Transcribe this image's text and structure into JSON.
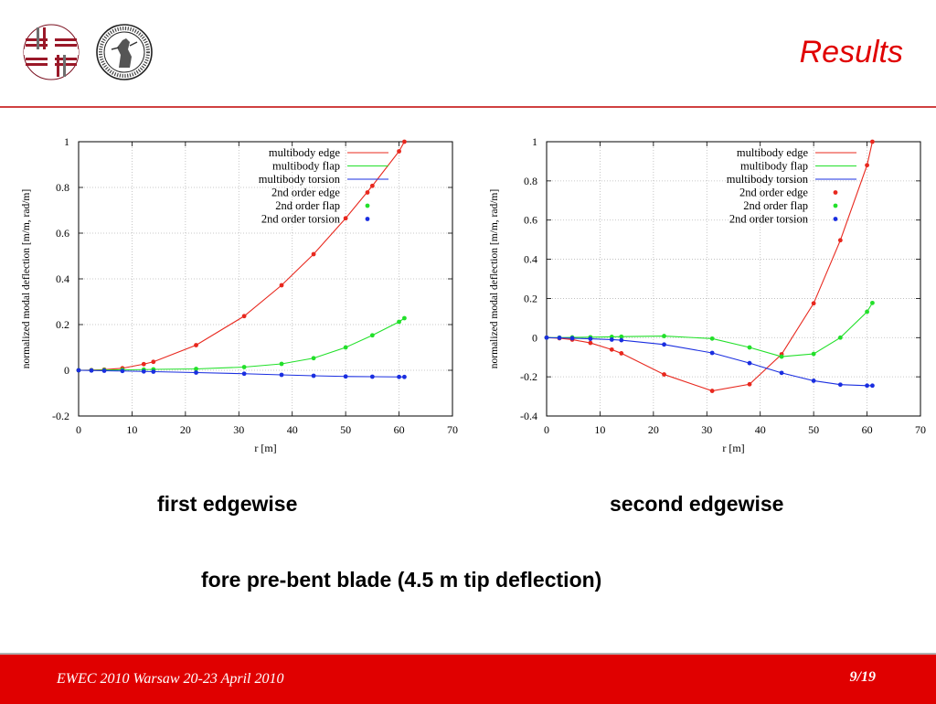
{
  "header": {
    "title": "Results"
  },
  "logos": {
    "left": "lab-logo",
    "right": "university-seal"
  },
  "captions": {
    "chart1": "first edgewise",
    "chart2": "second edgewise",
    "main": "fore pre-bent blade (4.5 m tip deflection)"
  },
  "footer": {
    "conference": "EWEC 2010 Warsaw 20-23 April 2010",
    "page": "9/19"
  },
  "colors": {
    "accent": "#e00000",
    "edge": "#e8281e",
    "flap": "#22e02a",
    "torsion": "#1a2ee0"
  },
  "chart_data": [
    {
      "type": "line",
      "xlabel": "r [m]",
      "ylabel": "normalized modal deflection [m/m, rad/m]",
      "xlim": [
        0,
        70
      ],
      "ylim": [
        -0.2,
        1
      ],
      "xticks": [
        "0",
        "10",
        "20",
        "30",
        "40",
        "50",
        "60",
        "70"
      ],
      "yticks": [
        "-0.2",
        "0",
        "0.2",
        "0.4",
        "0.6",
        "0.8",
        "1"
      ],
      "legend_position": "top-right",
      "grid": true,
      "series": [
        {
          "name": "multibody edge",
          "kind": "line",
          "color": "#e8281e",
          "x": [
            0,
            2.4,
            4.8,
            8.2,
            12.2,
            14.0,
            22,
            31,
            38,
            44,
            50,
            55,
            60,
            61
          ],
          "y": [
            0,
            0.001,
            0.003,
            0.009,
            0.027,
            0.037,
            0.11,
            0.237,
            0.372,
            0.508,
            0.665,
            0.807,
            0.958,
            1.0
          ]
        },
        {
          "name": "multibody flap",
          "kind": "line",
          "color": "#22e02a",
          "x": [
            0,
            2.4,
            4.8,
            8.2,
            12.2,
            14.0,
            22,
            31,
            38,
            44,
            50,
            55,
            60,
            61
          ],
          "y": [
            0,
            0.0,
            0.001,
            0.002,
            0.003,
            0.004,
            0.006,
            0.014,
            0.028,
            0.053,
            0.1,
            0.153,
            0.212,
            0.228
          ]
        },
        {
          "name": "multibody torsion",
          "kind": "line",
          "color": "#1a2ee0",
          "x": [
            0,
            2.4,
            4.8,
            8.2,
            12.2,
            14.0,
            22,
            31,
            38,
            44,
            50,
            55,
            60,
            61
          ],
          "y": [
            0,
            -0.001,
            -0.002,
            -0.003,
            -0.005,
            -0.006,
            -0.01,
            -0.015,
            -0.02,
            -0.024,
            -0.027,
            -0.028,
            -0.029,
            -0.029
          ]
        },
        {
          "name": "2nd order edge",
          "kind": "points",
          "color": "#e8281e",
          "x": [
            0,
            2.4,
            4.8,
            8.2,
            12.2,
            14.0,
            22,
            31,
            38,
            44,
            50,
            55,
            60,
            61
          ],
          "y": [
            0,
            0.001,
            0.003,
            0.009,
            0.027,
            0.037,
            0.11,
            0.237,
            0.372,
            0.508,
            0.665,
            0.807,
            0.958,
            1.0
          ]
        },
        {
          "name": "2nd order flap",
          "kind": "points",
          "color": "#22e02a",
          "x": [
            0,
            2.4,
            4.8,
            8.2,
            12.2,
            14.0,
            22,
            31,
            38,
            44,
            50,
            55,
            60,
            61
          ],
          "y": [
            0,
            0.0,
            0.001,
            0.002,
            0.003,
            0.004,
            0.006,
            0.014,
            0.028,
            0.053,
            0.1,
            0.153,
            0.212,
            0.228
          ]
        },
        {
          "name": "2nd order torsion",
          "kind": "points",
          "color": "#1a2ee0",
          "x": [
            0,
            2.4,
            4.8,
            8.2,
            12.2,
            14.0,
            22,
            31,
            38,
            44,
            50,
            55,
            60,
            61
          ],
          "y": [
            0,
            -0.001,
            -0.002,
            -0.003,
            -0.005,
            -0.006,
            -0.01,
            -0.015,
            -0.02,
            -0.024,
            -0.027,
            -0.028,
            -0.029,
            -0.029
          ]
        }
      ]
    },
    {
      "type": "line",
      "xlabel": "r [m]",
      "ylabel": "normalized modal deflection [m/m, rad/m]",
      "xlim": [
        0,
        70
      ],
      "ylim": [
        -0.4,
        1
      ],
      "xticks": [
        "0",
        "10",
        "20",
        "30",
        "40",
        "50",
        "60",
        "70"
      ],
      "yticks": [
        "-0.4",
        "-0.2",
        "0",
        "0.2",
        "0.4",
        "0.6",
        "0.8",
        "1"
      ],
      "legend_position": "top-right",
      "grid": true,
      "series": [
        {
          "name": "multibody edge",
          "kind": "line",
          "color": "#e8281e",
          "x": [
            0,
            2.4,
            4.8,
            8.2,
            12.2,
            14.0,
            22,
            31,
            38,
            44,
            50,
            55,
            60,
            61
          ],
          "y": [
            0,
            -0.003,
            -0.01,
            -0.027,
            -0.061,
            -0.08,
            -0.188,
            -0.272,
            -0.238,
            -0.085,
            0.175,
            0.497,
            0.88,
            1.0
          ]
        },
        {
          "name": "multibody flap",
          "kind": "line",
          "color": "#22e02a",
          "x": [
            0,
            2.4,
            4.8,
            8.2,
            12.2,
            14.0,
            22,
            31,
            38,
            44,
            50,
            55,
            60,
            61
          ],
          "y": [
            0,
            0.0,
            0.001,
            0.002,
            0.004,
            0.005,
            0.008,
            -0.005,
            -0.05,
            -0.097,
            -0.083,
            0.0,
            0.132,
            0.177
          ]
        },
        {
          "name": "multibody torsion",
          "kind": "line",
          "color": "#1a2ee0",
          "x": [
            0,
            2.4,
            4.8,
            8.2,
            12.2,
            14.0,
            22,
            31,
            38,
            44,
            50,
            55,
            60,
            61
          ],
          "y": [
            0,
            -0.001,
            -0.003,
            -0.006,
            -0.01,
            -0.013,
            -0.035,
            -0.078,
            -0.13,
            -0.18,
            -0.22,
            -0.24,
            -0.245,
            -0.245
          ]
        },
        {
          "name": "2nd order edge",
          "kind": "points",
          "color": "#e8281e",
          "x": [
            0,
            2.4,
            4.8,
            8.2,
            12.2,
            14.0,
            22,
            31,
            38,
            44,
            50,
            55,
            60,
            61
          ],
          "y": [
            0,
            -0.003,
            -0.01,
            -0.027,
            -0.061,
            -0.08,
            -0.188,
            -0.272,
            -0.238,
            -0.085,
            0.175,
            0.497,
            0.88,
            1.0
          ]
        },
        {
          "name": "2nd order flap",
          "kind": "points",
          "color": "#22e02a",
          "x": [
            0,
            2.4,
            4.8,
            8.2,
            12.2,
            14.0,
            22,
            31,
            38,
            44,
            50,
            55,
            60,
            61
          ],
          "y": [
            0,
            0.0,
            0.001,
            0.002,
            0.004,
            0.005,
            0.008,
            -0.005,
            -0.05,
            -0.097,
            -0.083,
            0.0,
            0.132,
            0.177
          ]
        },
        {
          "name": "2nd order torsion",
          "kind": "points",
          "color": "#1a2ee0",
          "x": [
            0,
            2.4,
            4.8,
            8.2,
            12.2,
            14.0,
            22,
            31,
            38,
            44,
            50,
            55,
            60,
            61
          ],
          "y": [
            0,
            -0.001,
            -0.003,
            -0.006,
            -0.01,
            -0.013,
            -0.035,
            -0.078,
            -0.13,
            -0.18,
            -0.22,
            -0.24,
            -0.245,
            -0.245
          ]
        }
      ]
    }
  ]
}
